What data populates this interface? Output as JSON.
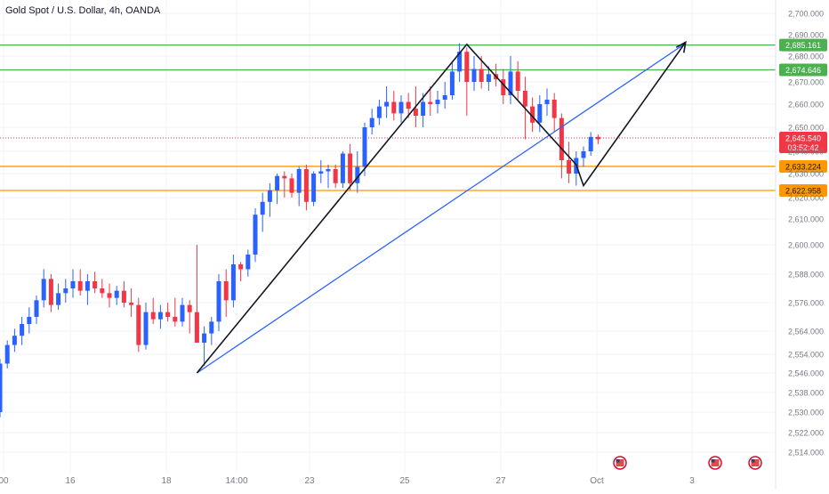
{
  "header": {
    "symbol_title": "Gold Spot / U.S. Dollar, 4h, OANDA"
  },
  "chart_data": {
    "type": "candlestick",
    "symbol": "Gold Spot / U.S. Dollar",
    "timeframe": "4h",
    "source": "OANDA",
    "x_ticks": [
      "00",
      "16",
      "18",
      "14:00",
      "23",
      "25",
      "27",
      "Oct",
      "3"
    ],
    "y_ticks": [
      "2,700.000",
      "2,690.000",
      "2,680.000",
      "2,670.000",
      "2,660.000",
      "2,650.000",
      "2,640.000",
      "2,630.000",
      "2,620.000",
      "2,610.000",
      "2,600.000",
      "2,588.000",
      "2,576.000",
      "2,564.000",
      "2,554.000",
      "2,546.000",
      "2,538.000",
      "2,530.000",
      "2,522.000",
      "2,514.000"
    ],
    "y_tick_values": [
      2700,
      2690,
      2680,
      2670,
      2660,
      2650,
      2640,
      2630,
      2620,
      2610,
      2600,
      2588,
      2576,
      2564,
      2554,
      2546,
      2538,
      2530,
      2522,
      2514
    ],
    "colors": {
      "up": "#2962ff",
      "down": "#f23645",
      "resistance": "#4caf50",
      "support": "#ff9800",
      "trendline": "#2962ff",
      "pattern": "#131722"
    },
    "price_lines": [
      {
        "value": 2685.161,
        "label": "2,685.161",
        "role": "resistance"
      },
      {
        "value": 2674.646,
        "label": "2,674.646",
        "role": "resistance"
      },
      {
        "value": 2633.224,
        "label": "2,633.224",
        "role": "support"
      },
      {
        "value": 2622.958,
        "label": "2,622.958",
        "role": "support"
      }
    ],
    "current_price": {
      "value": 2645.54,
      "label": "2,645.540",
      "countdown": "03:52:42"
    },
    "candles": [
      [
        2530,
        2552,
        2528,
        2550
      ],
      [
        2550,
        2560,
        2548,
        2558
      ],
      [
        2558,
        2565,
        2555,
        2562
      ],
      [
        2562,
        2570,
        2558,
        2567
      ],
      [
        2567,
        2574,
        2563,
        2570
      ],
      [
        2570,
        2579,
        2567,
        2577
      ],
      [
        2577,
        2590,
        2574,
        2586
      ],
      [
        2586,
        2588,
        2572,
        2575
      ],
      [
        2575,
        2584,
        2573,
        2580
      ],
      [
        2580,
        2586,
        2576,
        2582
      ],
      [
        2582,
        2590,
        2578,
        2585
      ],
      [
        2585,
        2590,
        2579,
        2581
      ],
      [
        2581,
        2588,
        2575,
        2585
      ],
      [
        2585,
        2589,
        2580,
        2582
      ],
      [
        2582,
        2586,
        2578,
        2580
      ],
      [
        2580,
        2584,
        2574,
        2578
      ],
      [
        2578,
        2583,
        2575,
        2581
      ],
      [
        2581,
        2585,
        2574,
        2576
      ],
      [
        2576,
        2582,
        2570,
        2575
      ],
      [
        2575,
        2578,
        2555,
        2558
      ],
      [
        2558,
        2576,
        2556,
        2572
      ],
      [
        2572,
        2578,
        2567,
        2569
      ],
      [
        2569,
        2575,
        2565,
        2572
      ],
      [
        2572,
        2576,
        2568,
        2570
      ],
      [
        2570,
        2578,
        2566,
        2568
      ],
      [
        2568,
        2578,
        2566,
        2575
      ],
      [
        2575,
        2577,
        2563,
        2572
      ],
      [
        2572,
        2600,
        2560,
        2559
      ],
      [
        2559,
        2566,
        2549,
        2563
      ],
      [
        2563,
        2570,
        2558,
        2568
      ],
      [
        2568,
        2588,
        2564,
        2585
      ],
      [
        2585,
        2590,
        2570,
        2577
      ],
      [
        2577,
        2596,
        2574,
        2592
      ],
      [
        2592,
        2593,
        2585,
        2590
      ],
      [
        2590,
        2598,
        2587,
        2596
      ],
      [
        2596,
        2615,
        2593,
        2612
      ],
      [
        2612,
        2622,
        2605,
        2618
      ],
      [
        2618,
        2626,
        2611,
        2623
      ],
      [
        2623,
        2630,
        2617,
        2629
      ],
      [
        2629,
        2631,
        2620,
        2628
      ],
      [
        2628,
        2630,
        2620,
        2622
      ],
      [
        2622,
        2633,
        2616,
        2632
      ],
      [
        2632,
        2634,
        2614,
        2618
      ],
      [
        2618,
        2631,
        2616,
        2630
      ],
      [
        2630,
        2636,
        2626,
        2631
      ],
      [
        2631,
        2634,
        2624,
        2632
      ],
      [
        2632,
        2634,
        2624,
        2626
      ],
      [
        2626,
        2640,
        2624,
        2639
      ],
      [
        2639,
        2643,
        2623,
        2626
      ],
      [
        2626,
        2640,
        2622,
        2633
      ],
      [
        2633,
        2652,
        2629,
        2650
      ],
      [
        2650,
        2658,
        2647,
        2654
      ],
      [
        2654,
        2662,
        2651,
        2659
      ],
      [
        2659,
        2668,
        2654,
        2661
      ],
      [
        2661,
        2666,
        2653,
        2656
      ],
      [
        2656,
        2664,
        2652,
        2661
      ],
      [
        2661,
        2665,
        2654,
        2658
      ],
      [
        2658,
        2668,
        2650,
        2655
      ],
      [
        2655,
        2665,
        2650,
        2661
      ],
      [
        2661,
        2668,
        2655,
        2660
      ],
      [
        2660,
        2666,
        2656,
        2662
      ],
      [
        2662,
        2670,
        2658,
        2664
      ],
      [
        2664,
        2678,
        2662,
        2674
      ],
      [
        2674,
        2686,
        2670,
        2682
      ],
      [
        2682,
        2684,
        2655,
        2670
      ],
      [
        2670,
        2680,
        2666,
        2675
      ],
      [
        2675,
        2680,
        2667,
        2670
      ],
      [
        2670,
        2676,
        2666,
        2673
      ],
      [
        2673,
        2677,
        2668,
        2671
      ],
      [
        2671,
        2675,
        2660,
        2664
      ],
      [
        2664,
        2680,
        2660,
        2674
      ],
      [
        2674,
        2678,
        2662,
        2666
      ],
      [
        2666,
        2672,
        2645,
        2659
      ],
      [
        2659,
        2663,
        2648,
        2652
      ],
      [
        2652,
        2664,
        2648,
        2660
      ],
      [
        2660,
        2667,
        2655,
        2662
      ],
      [
        2662,
        2665,
        2648,
        2654
      ],
      [
        2654,
        2656,
        2628,
        2636
      ],
      [
        2636,
        2644,
        2626,
        2630
      ],
      [
        2630,
        2640,
        2625,
        2637
      ],
      [
        2637,
        2642,
        2633,
        2640
      ],
      [
        2640,
        2648,
        2638,
        2646
      ],
      [
        2646,
        2647,
        2643,
        2645
      ]
    ],
    "overlays": {
      "pattern_path": [
        [
          27,
          2546
        ],
        [
          64,
          2685.5
        ],
        [
          79,
          2634
        ],
        [
          80,
          2625
        ],
        [
          94,
          2686.5
        ]
      ],
      "trendline": [
        [
          27,
          2546
        ],
        [
          94,
          2686
        ]
      ]
    }
  }
}
